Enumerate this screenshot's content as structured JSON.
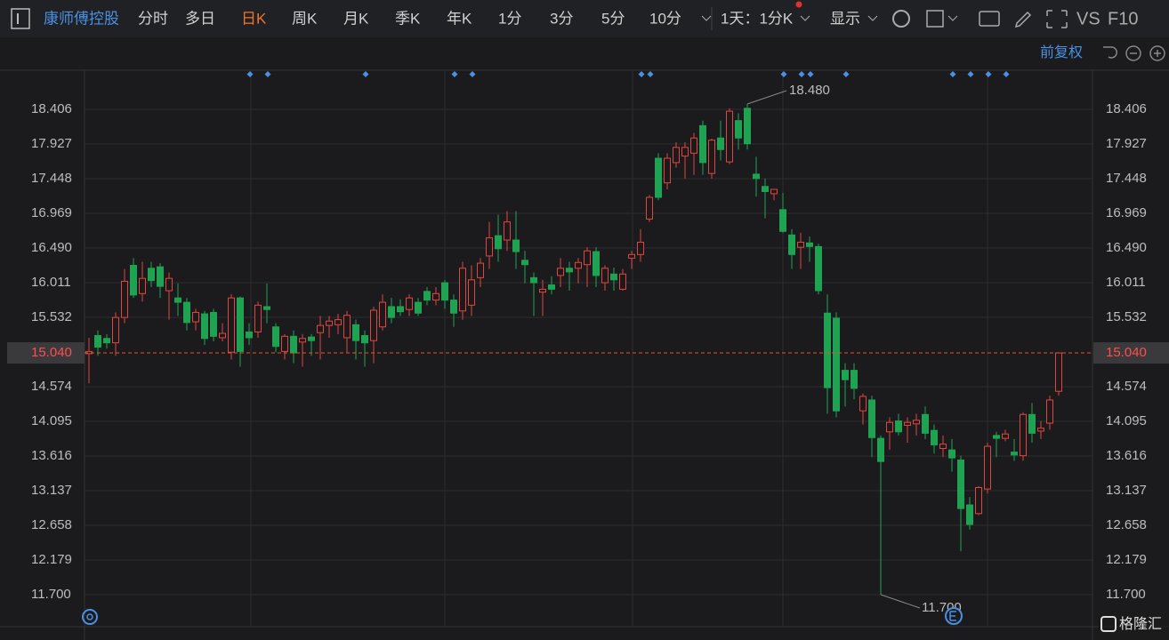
{
  "toolbar": {
    "stock": "康师傅控股",
    "periods": [
      "分时",
      "多日",
      "日K",
      "周K",
      "月K",
      "季K",
      "年K",
      "1分",
      "3分",
      "5分",
      "10分"
    ],
    "interval": "1天：1分K",
    "display": "显示",
    "vs": "VS",
    "f10": "F10"
  },
  "chart_data": {
    "type": "candlestick",
    "adjust_label": "前复权",
    "ylim": [
      11.442,
      18.934
    ],
    "yticks": [
      18.406,
      17.927,
      17.448,
      16.969,
      {
        "value": 16.49,
        "label": "16.490"
      },
      16.011,
      15.532,
      14.574,
      14.095,
      13.616,
      13.137,
      12.658,
      12.179,
      {
        "value": 11.7,
        "label": "11.700"
      }
    ],
    "last_price": {
      "value": 15.04,
      "label": "15.040"
    },
    "high_label": {
      "value": 18.48,
      "label": "18.480"
    },
    "low_label": {
      "value": 11.7,
      "label": "11.700"
    },
    "up_color": "#e0463f",
    "down_color": "#1fa352",
    "open": [
      15.03,
      15.28,
      15.24,
      15.18,
      15.53,
      16.25,
      15.86,
      16.21,
      16.23,
      15.9,
      15.8,
      15.74,
      15.47,
      15.58,
      15.6,
      15.25,
      15.05,
      15.8,
      15.33,
      15.33,
      15.68,
      15.4,
      15.06,
      15.27,
      15.19,
      15.26,
      15.32,
      15.42,
      15.43,
      15.25,
      15.43,
      15.28,
      15.21,
      15.4,
      15.68,
      15.68,
      15.64,
      15.74,
      15.89,
      15.77,
      16.01,
      15.77,
      15.62,
      15.7,
      16.08,
      16.38,
      16.66,
      16.6,
      16.6,
      16.32,
      16.08,
      15.88,
      15.98,
      16.11,
      16.21,
      16.21,
      16.26,
      16.44,
      16.01,
      16.13,
      15.92,
      16.35,
      16.4,
      16.89,
      17.73,
      17.39,
      17.67,
      17.76,
      17.8,
      18.18,
      17.52,
      18.01,
      17.68,
      18.25,
      18.42,
      17.51,
      17.34,
      17.24,
      17.02,
      16.67,
      16.5,
      16.56,
      16.51,
      15.59,
      15.52,
      14.8,
      14.8,
      14.24,
      14.39,
      13.86,
      13.95,
      14.1,
      14.04,
      14.06,
      14.19,
      13.97,
      13.72,
      13.7,
      13.56,
      12.94,
      12.82,
      13.16,
      13.9,
      13.86,
      13.67,
      13.62,
      14.19,
      13.96,
      14.07,
      14.51
    ],
    "close": [
      15.06,
      15.12,
      15.18,
      15.53,
      16.03,
      15.84,
      16.07,
      16.04,
      15.96,
      16.07,
      15.74,
      15.46,
      15.6,
      15.24,
      15.27,
      15.31,
      15.8,
      15.06,
      15.25,
      15.7,
      15.64,
      15.13,
      15.27,
      15.04,
      15.24,
      15.21,
      15.42,
      15.48,
      15.5,
      15.56,
      15.21,
      15.18,
      15.63,
      15.74,
      15.53,
      15.61,
      15.8,
      15.59,
      15.77,
      15.86,
      15.77,
      15.59,
      16.21,
      16.05,
      16.28,
      16.63,
      16.48,
      16.85,
      16.44,
      16.26,
      16.01,
      15.92,
      15.92,
      16.21,
      16.16,
      16.29,
      16.45,
      16.11,
      16.21,
      16.05,
      16.13,
      16.4,
      16.57,
      17.19,
      17.19,
      17.73,
      17.88,
      17.88,
      18.01,
      17.67,
      17.98,
      17.85,
      18.38,
      18.01,
      17.93,
      17.45,
      17.27,
      17.3,
      16.72,
      16.4,
      16.57,
      16.51,
      15.9,
      14.56,
      14.24,
      14.67,
      14.55,
      14.44,
      13.87,
      13.54,
      14.08,
      13.95,
      14.08,
      14.11,
      13.93,
      13.77,
      13.78,
      13.59,
      12.89,
      12.67,
      13.18,
      13.75,
      13.86,
      13.92,
      13.63,
      14.19,
      13.93,
      14.0,
      14.39,
      15.04
    ],
    "low": [
      14.62,
      15.0,
      15.1,
      15.0,
      15.45,
      15.8,
      15.75,
      15.95,
      15.8,
      15.5,
      15.55,
      15.35,
      15.35,
      15.15,
      15.2,
      15.2,
      14.95,
      14.85,
      15.15,
      15.25,
      15.45,
      15.05,
      14.95,
      14.9,
      14.85,
      15.0,
      14.95,
      15.25,
      15.3,
      15.05,
      14.95,
      14.85,
      14.9,
      15.35,
      15.45,
      15.55,
      15.55,
      15.55,
      15.7,
      15.7,
      15.65,
      15.4,
      15.5,
      15.55,
      15.95,
      16.2,
      16.3,
      16.45,
      16.2,
      16.0,
      15.55,
      15.55,
      15.85,
      15.95,
      15.9,
      16.0,
      15.95,
      15.95,
      15.9,
      15.9,
      15.9,
      16.2,
      16.3,
      16.85,
      17.15,
      17.3,
      17.6,
      17.45,
      17.5,
      17.5,
      17.45,
      17.7,
      17.65,
      17.85,
      17.85,
      17.2,
      16.9,
      17.15,
      16.7,
      16.2,
      16.2,
      16.3,
      15.85,
      14.2,
      14.15,
      14.3,
      14.4,
      14.05,
      13.6,
      11.7,
      13.7,
      13.9,
      13.8,
      13.9,
      13.85,
      13.65,
      13.6,
      13.4,
      12.3,
      12.6,
      12.8,
      13.1,
      13.6,
      13.82,
      13.55,
      13.55,
      13.8,
      13.85,
      13.98,
      14.45
    ],
    "high": [
      15.25,
      15.35,
      15.3,
      15.6,
      16.2,
      16.35,
      16.3,
      16.3,
      16.28,
      16.15,
      16.0,
      15.8,
      15.65,
      15.62,
      15.65,
      15.45,
      15.85,
      15.82,
      15.45,
      15.75,
      16.0,
      15.45,
      15.3,
      15.35,
      15.3,
      15.3,
      15.55,
      15.55,
      15.58,
      15.62,
      15.5,
      15.35,
      15.68,
      15.85,
      15.8,
      15.78,
      15.85,
      15.8,
      15.95,
      15.95,
      16.05,
      15.85,
      16.3,
      16.25,
      16.35,
      16.85,
      16.95,
      17.0,
      17.0,
      16.45,
      16.15,
      16.05,
      16.1,
      16.35,
      16.3,
      16.35,
      16.5,
      16.5,
      16.25,
      16.22,
      16.2,
      16.45,
      16.75,
      17.22,
      17.8,
      17.8,
      17.95,
      17.95,
      18.08,
      18.25,
      18.0,
      18.25,
      18.42,
      18.35,
      18.48,
      17.75,
      17.45,
      17.3,
      17.25,
      16.75,
      16.7,
      16.65,
      16.55,
      15.85,
      15.6,
      14.9,
      14.9,
      14.48,
      14.45,
      13.9,
      14.15,
      14.2,
      14.15,
      14.2,
      14.3,
      14.05,
      13.9,
      13.85,
      13.62,
      13.05,
      13.2,
      13.8,
      13.95,
      13.98,
      13.85,
      14.22,
      14.35,
      14.1,
      14.45,
      15.04
    ]
  },
  "watermark": "格隆汇"
}
